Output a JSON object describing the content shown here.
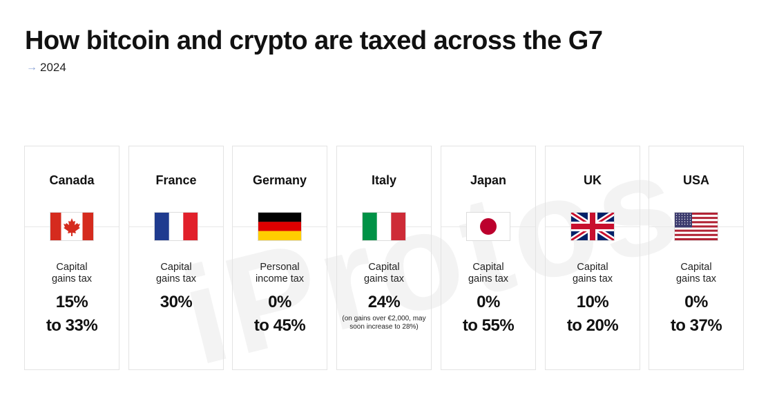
{
  "title": "How bitcoin and crypto are taxed across the G7",
  "subtitle": {
    "arrow": "→",
    "text": "2024"
  },
  "watermark": "iProtos",
  "chart_data": {
    "type": "table",
    "title": "How bitcoin and crypto are taxed across the G7",
    "subtitle": "2024",
    "rows": [
      {
        "country": "Canada",
        "flag": "canada-flag",
        "tax_type": [
          "Capital",
          "gains tax"
        ],
        "rate_lines": [
          "15%",
          "to 33%"
        ],
        "min_rate": 15,
        "max_rate": 33,
        "note": ""
      },
      {
        "country": "France",
        "flag": "france-flag",
        "tax_type": [
          "Capital",
          "gains tax"
        ],
        "rate_lines": [
          "30%"
        ],
        "min_rate": 30,
        "max_rate": 30,
        "note": ""
      },
      {
        "country": "Germany",
        "flag": "germany-flag",
        "tax_type": [
          "Personal",
          "income tax"
        ],
        "rate_lines": [
          "0%",
          "to 45%"
        ],
        "min_rate": 0,
        "max_rate": 45,
        "note": ""
      },
      {
        "country": "Italy",
        "flag": "italy-flag",
        "tax_type": [
          "Capital",
          "gains tax"
        ],
        "rate_lines": [
          "24%"
        ],
        "min_rate": 24,
        "max_rate": 24,
        "note": "(on gains over €2,000, may soon increase to 28%)"
      },
      {
        "country": "Japan",
        "flag": "japan-flag",
        "tax_type": [
          "Capital",
          "gains tax"
        ],
        "rate_lines": [
          "0%",
          "to 55%"
        ],
        "min_rate": 0,
        "max_rate": 55,
        "note": ""
      },
      {
        "country": "UK",
        "flag": "uk-flag",
        "tax_type": [
          "Capital",
          "gains tax"
        ],
        "rate_lines": [
          "10%",
          "to 20%"
        ],
        "min_rate": 10,
        "max_rate": 20,
        "note": ""
      },
      {
        "country": "USA",
        "flag": "usa-flag",
        "tax_type": [
          "Capital",
          "gains tax"
        ],
        "rate_lines": [
          "0%",
          "to 37%"
        ],
        "min_rate": 0,
        "max_rate": 37,
        "note": ""
      }
    ]
  },
  "colors": {
    "canada_red": "#d52b1e",
    "france_blue": "#1f3b8f",
    "france_red": "#e1202b",
    "germany_black": "#000000",
    "germany_red": "#dd0000",
    "germany_gold": "#ffce00",
    "italy_green": "#009246",
    "italy_red": "#ce2b37",
    "japan_red": "#bc002d",
    "uk_blue": "#012169",
    "uk_red": "#c8102e",
    "usa_red": "#b22234",
    "usa_blue": "#3c3b6e",
    "subtitle_arrow": "#8aa2d6"
  }
}
